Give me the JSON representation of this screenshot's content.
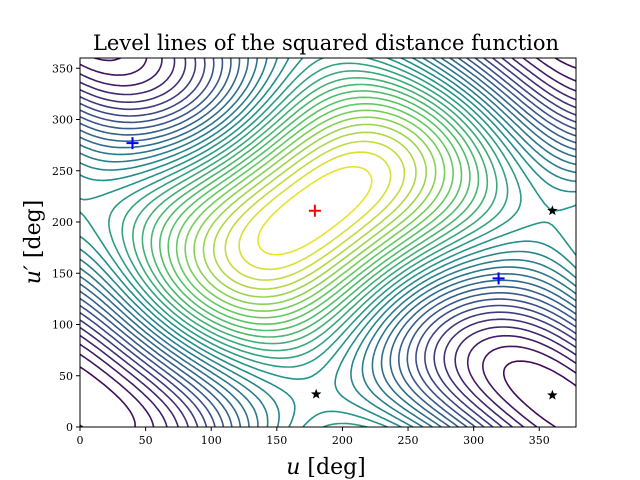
{
  "chart_data": {
    "type": "contour",
    "title": "Level lines of the squared distance function",
    "xlabel": {
      "var": "u",
      "unit": " [deg]"
    },
    "ylabel": {
      "var": "u′",
      "unit": " [deg]"
    },
    "xlim": [
      0,
      378
    ],
    "ylim": [
      0,
      360
    ],
    "xticks": [
      "0",
      "50",
      "100",
      "150",
      "200",
      "250",
      "300",
      "350"
    ],
    "xtick_values": [
      0,
      50,
      100,
      150,
      200,
      250,
      300,
      350
    ],
    "yticks": [
      "0",
      "50",
      "100",
      "150",
      "200",
      "250",
      "300",
      "350"
    ],
    "ytick_values": [
      0,
      50,
      100,
      150,
      200,
      250,
      300,
      350
    ],
    "grid": false,
    "colormap": "viridis",
    "maximum": {
      "x": 179,
      "y": 211
    },
    "saddles": [
      {
        "x": 40,
        "y": 277
      },
      {
        "x": 319,
        "y": 145
      }
    ],
    "markers": [
      {
        "x": 179,
        "y": 211,
        "shape": "plus",
        "color": "#ff0000"
      },
      {
        "x": 40,
        "y": 277,
        "shape": "plus",
        "color": "#0000ff"
      },
      {
        "x": 319,
        "y": 145,
        "shape": "plus",
        "color": "#0000ff"
      },
      {
        "x": 180,
        "y": 32,
        "shape": "star",
        "color": "#000000"
      },
      {
        "x": 360,
        "y": 211,
        "shape": "star",
        "color": "#000000"
      },
      {
        "x": 360,
        "y": 31,
        "shape": "star",
        "color": "#000000"
      }
    ]
  }
}
